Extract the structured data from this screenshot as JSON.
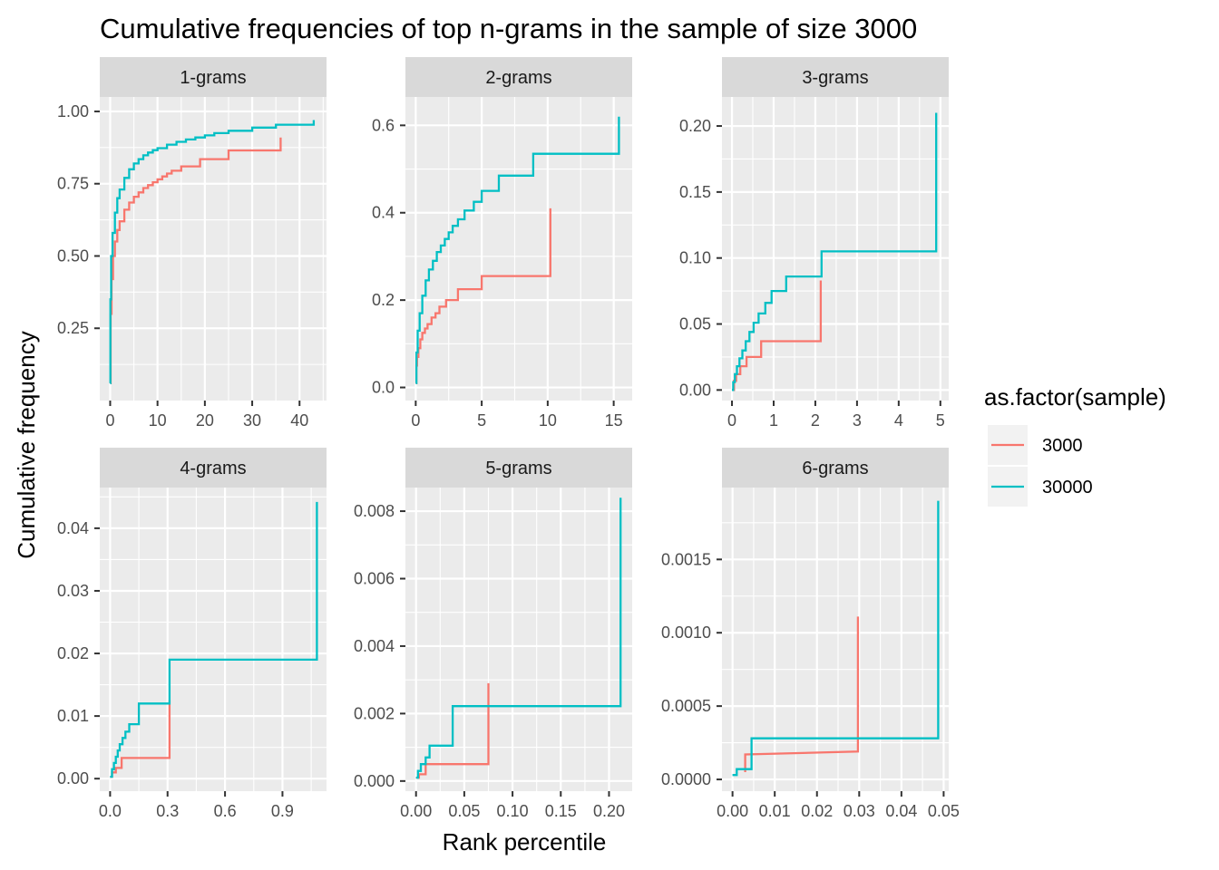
{
  "chart_data": {
    "type": "line",
    "title": "Cumulative frequencies of top n-grams in the sample of size 3000",
    "xlabel": "Rank percentile",
    "ylabel": "Cumulative frequency",
    "grid": true,
    "legend": {
      "title": "as.factor(sample)",
      "position": "right",
      "entries": [
        {
          "label": "3000",
          "color": "#F8766D"
        },
        {
          "label": "30000",
          "color": "#00BFC4"
        }
      ]
    },
    "panels": [
      {
        "name": "1-grams",
        "xlim": [
          -2.2,
          45.7
        ],
        "ylim": [
          0.0,
          1.05
        ],
        "xticks": [
          0,
          10,
          20,
          30,
          40
        ],
        "xtick_labels": [
          "0",
          "10",
          "20",
          "30",
          "40"
        ],
        "yticks": [
          0.25,
          0.5,
          0.75,
          1.0
        ],
        "ytick_labels": [
          "0.25",
          "0.50",
          "0.75",
          "1.00"
        ],
        "series": [
          {
            "name": "3000",
            "color": "#F8766D",
            "step": true,
            "x": [
              0,
              0.1,
              0.3,
              0.6,
              1,
              1.5,
              2,
              3,
              4,
              5,
              6,
              7,
              8,
              9,
              10,
              11,
              12,
              13,
              15,
              19,
              25,
              36,
              36
            ],
            "y": [
              0.06,
              0.3,
              0.42,
              0.5,
              0.55,
              0.59,
              0.62,
              0.66,
              0.685,
              0.705,
              0.72,
              0.735,
              0.745,
              0.755,
              0.765,
              0.775,
              0.785,
              0.795,
              0.81,
              0.835,
              0.865,
              0.865,
              0.91
            ]
          },
          {
            "name": "30000",
            "color": "#00BFC4",
            "step": true,
            "x": [
              0,
              0.05,
              0.2,
              0.5,
              1,
              1.5,
              2,
              3,
              4,
              5,
              6,
              7,
              8,
              9,
              10,
              12,
              14,
              16,
              18,
              20,
              22,
              25,
              30,
              35,
              43,
              43
            ],
            "y": [
              0.06,
              0.35,
              0.5,
              0.58,
              0.65,
              0.7,
              0.73,
              0.77,
              0.8,
              0.82,
              0.835,
              0.848,
              0.858,
              0.866,
              0.873,
              0.885,
              0.895,
              0.903,
              0.91,
              0.917,
              0.925,
              0.933,
              0.944,
              0.954,
              0.954,
              0.97
            ]
          }
        ]
      },
      {
        "name": "2-grams",
        "xlim": [
          -0.78,
          16.4
        ],
        "ylim": [
          -0.03,
          0.665
        ],
        "xticks": [
          0,
          5,
          10,
          15
        ],
        "xtick_labels": [
          "0",
          "5",
          "10",
          "15"
        ],
        "yticks": [
          0.0,
          0.2,
          0.4,
          0.6
        ],
        "ytick_labels": [
          "0.0",
          "0.2",
          "0.4",
          "0.6"
        ],
        "series": [
          {
            "name": "3000",
            "color": "#F8766D",
            "step": true,
            "x": [
              0,
              0.05,
              0.1,
              0.2,
              0.35,
              0.5,
              0.7,
              0.9,
              1.2,
              1.5,
              1.8,
              2.3,
              3.2,
              5,
              10.2,
              10.2
            ],
            "y": [
              0.01,
              0.05,
              0.07,
              0.09,
              0.11,
              0.125,
              0.135,
              0.145,
              0.16,
              0.17,
              0.185,
              0.2,
              0.225,
              0.255,
              0.305,
              0.41
            ]
          },
          {
            "name": "30000",
            "color": "#00BFC4",
            "step": true,
            "x": [
              0,
              0.05,
              0.15,
              0.3,
              0.5,
              0.75,
              1,
              1.3,
              1.6,
              1.9,
              2.2,
              2.5,
              2.8,
              3.2,
              3.7,
              4.4,
              5,
              6.3,
              8.9,
              15.4,
              15.4
            ],
            "y": [
              0.01,
              0.08,
              0.13,
              0.17,
              0.21,
              0.245,
              0.27,
              0.29,
              0.31,
              0.325,
              0.34,
              0.355,
              0.37,
              0.385,
              0.405,
              0.425,
              0.45,
              0.485,
              0.535,
              0.535,
              0.62
            ]
          }
        ]
      },
      {
        "name": "3-grams",
        "xlim": [
          -0.24,
          5.2
        ],
        "ylim": [
          -0.008,
          0.222
        ],
        "xticks": [
          0,
          1,
          2,
          3,
          4,
          5
        ],
        "xtick_labels": [
          "0",
          "1",
          "2",
          "3",
          "4",
          "5"
        ],
        "yticks": [
          0.0,
          0.05,
          0.1,
          0.15,
          0.2
        ],
        "ytick_labels": [
          "0.00",
          "0.05",
          "0.10",
          "0.15",
          "0.20"
        ],
        "series": [
          {
            "name": "3000",
            "color": "#F8766D",
            "step": true,
            "x": [
              0,
              0.05,
              0.1,
              0.2,
              0.35,
              0.7,
              2.13,
              2.13
            ],
            "y": [
              0.0,
              0.007,
              0.012,
              0.018,
              0.025,
              0.037,
              0.037,
              0.083
            ]
          },
          {
            "name": "30000",
            "color": "#00BFC4",
            "step": true,
            "x": [
              0,
              0.03,
              0.07,
              0.12,
              0.18,
              0.25,
              0.33,
              0.42,
              0.52,
              0.64,
              0.8,
              0.95,
              1.3,
              2.15,
              4.9,
              4.9
            ],
            "y": [
              0.0,
              0.006,
              0.012,
              0.018,
              0.024,
              0.03,
              0.037,
              0.044,
              0.051,
              0.058,
              0.066,
              0.075,
              0.086,
              0.105,
              0.137,
              0.21
            ]
          }
        ]
      },
      {
        "name": "4-grams",
        "xlim": [
          -0.054,
          1.13
        ],
        "ylim": [
          -0.002,
          0.0465
        ],
        "xticks": [
          0.0,
          0.3,
          0.6,
          0.9
        ],
        "xtick_labels": [
          "0.0",
          "0.3",
          "0.6",
          "0.9"
        ],
        "yticks": [
          0.0,
          0.01,
          0.02,
          0.03,
          0.04
        ],
        "ytick_labels": [
          "0.00",
          "0.01",
          "0.02",
          "0.03",
          "0.04"
        ],
        "series": [
          {
            "name": "3000",
            "color": "#F8766D",
            "step": true,
            "x": [
              0,
              0.01,
              0.03,
              0.06,
              0.31,
              0.31
            ],
            "y": [
              0.0003,
              0.001,
              0.0017,
              0.0033,
              0.0033,
              0.0125
            ]
          },
          {
            "name": "30000",
            "color": "#00BFC4",
            "step": true,
            "x": [
              0,
              0.01,
              0.02,
              0.03,
              0.04,
              0.05,
              0.065,
              0.08,
              0.1,
              0.15,
              0.31,
              1.08,
              1.08
            ],
            "y": [
              0.0003,
              0.0015,
              0.0025,
              0.0035,
              0.0045,
              0.0055,
              0.0065,
              0.0075,
              0.0087,
              0.012,
              0.019,
              0.019,
              0.0442
            ]
          }
        ]
      },
      {
        "name": "5-grams",
        "xlim": [
          -0.011,
          0.224
        ],
        "ylim": [
          -0.0003,
          0.0087
        ],
        "xticks": [
          0.0,
          0.05,
          0.1,
          0.15,
          0.2
        ],
        "xtick_labels": [
          "0.00",
          "0.05",
          "0.10",
          "0.15",
          "0.20"
        ],
        "yticks": [
          0.0,
          0.002,
          0.004,
          0.006,
          0.008
        ],
        "ytick_labels": [
          "0.000",
          "0.002",
          "0.004",
          "0.006",
          "0.008"
        ],
        "series": [
          {
            "name": "3000",
            "color": "#F8766D",
            "step": true,
            "x": [
              0,
              0.003,
              0.01,
              0.075,
              0.075
            ],
            "y": [
              0.0001,
              0.0002,
              0.0005,
              0.00055,
              0.0029
            ]
          },
          {
            "name": "30000",
            "color": "#00BFC4",
            "step": true,
            "x": [
              0,
              0.002,
              0.005,
              0.01,
              0.014,
              0.038,
              0.212,
              0.212
            ],
            "y": [
              0.0001,
              0.0003,
              0.0005,
              0.0007,
              0.00105,
              0.00222,
              0.00222,
              0.0084
            ]
          }
        ]
      },
      {
        "name": "6-grams",
        "xlim": [
          -0.0025,
          0.0512
        ],
        "ylim": [
          -8e-05,
          0.00199
        ],
        "xticks": [
          0.0,
          0.01,
          0.02,
          0.03,
          0.04,
          0.05
        ],
        "xtick_labels": [
          "0.00",
          "0.01",
          "0.02",
          "0.03",
          "0.04",
          "0.05"
        ],
        "yticks": [
          0.0,
          0.0005,
          0.001,
          0.0015
        ],
        "ytick_labels": [
          "0.0000",
          "0.0005",
          "0.0010",
          "0.0015"
        ],
        "series": [
          {
            "name": "3000",
            "color": "#F8766D",
            "step": false,
            "x": [
              0.003,
              0.003,
              0.003,
              0.0297,
              0.0297
            ],
            "y": [
              5e-05,
              0.00017,
              0.00017,
              0.00019,
              0.00111
            ]
          },
          {
            "name": "30000",
            "color": "#00BFC4",
            "step": true,
            "x": [
              0,
              0.001,
              0.0045,
              0.0487,
              0.0487
            ],
            "y": [
              3e-05,
              7e-05,
              0.00028,
              0.00028,
              0.0019
            ]
          }
        ]
      }
    ]
  }
}
